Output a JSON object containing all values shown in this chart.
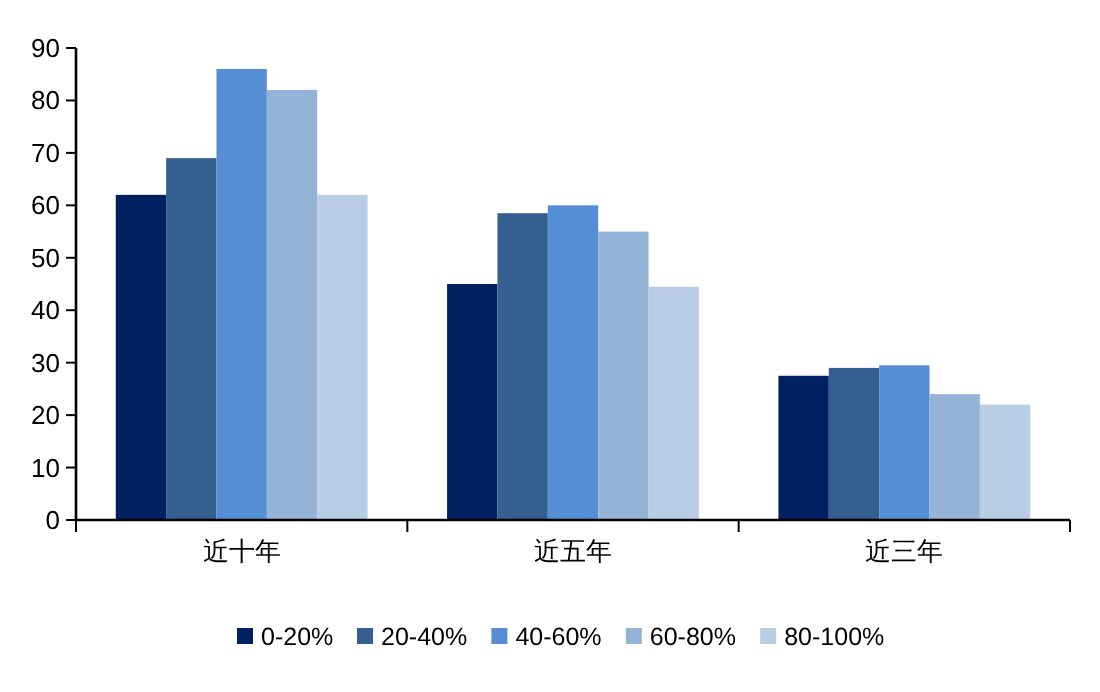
{
  "chart_data": {
    "type": "bar",
    "categories": [
      "近十年",
      "近五年",
      "近三年"
    ],
    "series": [
      {
        "name": "0-20%",
        "color": "#002060",
        "values": [
          62,
          45,
          27.5
        ]
      },
      {
        "name": "20-40%",
        "color": "#365f91",
        "values": [
          69,
          58.5,
          29
        ]
      },
      {
        "name": "40-60%",
        "color": "#558ed5",
        "values": [
          86,
          60,
          29.5
        ]
      },
      {
        "name": "60-80%",
        "color": "#95b3d7",
        "values": [
          82,
          55,
          24
        ]
      },
      {
        "name": "80-100%",
        "color": "#b9cde5",
        "values": [
          62,
          44.5,
          22
        ]
      }
    ],
    "ylim": [
      0,
      90
    ],
    "yticks": [
      0,
      10,
      20,
      30,
      40,
      50,
      60,
      70,
      80,
      90
    ],
    "grid": false,
    "legend": "bottom"
  }
}
